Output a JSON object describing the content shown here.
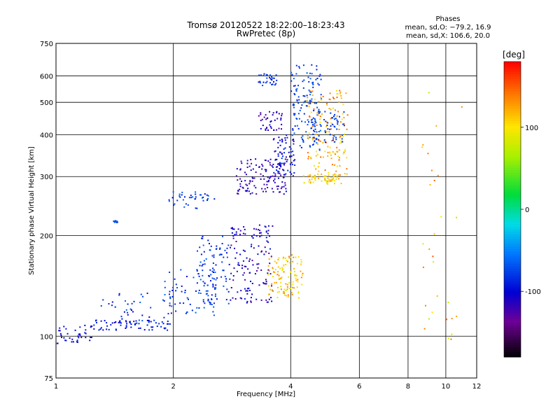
{
  "chart_data": {
    "type": "scatter",
    "title": "Tromsø 20120522 18:22:00–18:23:43",
    "subtitle": "RwPretec (8p)",
    "xlabel": "Frequency [MHz]",
    "ylabel": "Stationary phase Virtual Height [km]",
    "x_scale": "log",
    "y_scale": "log",
    "xlim": [
      1,
      12
    ],
    "ylim": [
      75,
      750
    ],
    "x_ticks": [
      1,
      2,
      4,
      6,
      8,
      10,
      12
    ],
    "y_ticks": [
      75,
      100,
      200,
      300,
      400,
      500,
      600,
      750
    ],
    "grid": true,
    "phases_title": "Phases",
    "phases_line1": "mean, sd,O: −79.2, 16.9",
    "phases_line2": "mean, sd,X: 106.6, 20.0",
    "colorbar": {
      "label": "[deg]",
      "range": [
        -180,
        180
      ],
      "ticks": [
        100,
        0,
        -100
      ],
      "colormap": "rainbow"
    },
    "clusters": [
      {
        "xr": [
          1.0,
          1.25
        ],
        "yr": [
          95,
          108
        ],
        "pr": [
          -110,
          -90
        ],
        "n": 40
      },
      {
        "xr": [
          1.25,
          2.0
        ],
        "yr": [
          104,
          112
        ],
        "pr": [
          -105,
          -80
        ],
        "n": 70
      },
      {
        "xr": [
          1.3,
          2.0
        ],
        "yr": [
          110,
          135
        ],
        "pr": [
          -110,
          -60
        ],
        "n": 40
      },
      {
        "xr": [
          1.9,
          2.6
        ],
        "yr": [
          115,
          160
        ],
        "pr": [
          -100,
          -60
        ],
        "n": 70
      },
      {
        "xr": [
          2.3,
          2.8
        ],
        "yr": [
          125,
          200
        ],
        "pr": [
          -100,
          -60
        ],
        "n": 90
      },
      {
        "xr": [
          2.8,
          3.6
        ],
        "yr": [
          125,
          215
        ],
        "pr": [
          -130,
          -90
        ],
        "n": 140
      },
      {
        "xr": [
          3.5,
          4.3
        ],
        "yr": [
          130,
          175
        ],
        "pr": [
          80,
          140
        ],
        "n": 110
      },
      {
        "xr": [
          1.95,
          2.6
        ],
        "yr": [
          240,
          270
        ],
        "pr": [
          -100,
          -60
        ],
        "n": 40
      },
      {
        "xr": [
          2.9,
          3.9
        ],
        "yr": [
          265,
          340
        ],
        "pr": [
          -130,
          -100
        ],
        "n": 120
      },
      {
        "xr": [
          3.6,
          4.1
        ],
        "yr": [
          300,
          400
        ],
        "pr": [
          -120,
          -80
        ],
        "n": 80
      },
      {
        "xr": [
          4.0,
          4.8
        ],
        "yr": [
          360,
          650
        ],
        "pr": [
          -90,
          -60
        ],
        "n": 140
      },
      {
        "xr": [
          3.3,
          3.7
        ],
        "yr": [
          560,
          610
        ],
        "pr": [
          -100,
          -70
        ],
        "n": 30
      },
      {
        "xr": [
          3.3,
          3.8
        ],
        "yr": [
          410,
          470
        ],
        "pr": [
          -130,
          -100
        ],
        "n": 40
      },
      {
        "xr": [
          4.4,
          5.6
        ],
        "yr": [
          300,
          550
        ],
        "pr": [
          90,
          150
        ],
        "n": 150
      },
      {
        "xr": [
          4.3,
          5.4
        ],
        "yr": [
          285,
          305
        ],
        "pr": [
          80,
          130
        ],
        "n": 60
      },
      {
        "xr": [
          4.5,
          5.5
        ],
        "yr": [
          380,
          470
        ],
        "pr": [
          -90,
          -70
        ],
        "n": 60
      },
      {
        "xr": [
          1.4,
          1.45
        ],
        "yr": [
          218,
          222
        ],
        "pr": [
          -80,
          -60
        ],
        "n": 12
      },
      {
        "xr": [
          8.5,
          11.0
        ],
        "yr": [
          90,
          550
        ],
        "pr": [
          70,
          160
        ],
        "n": 30
      }
    ]
  }
}
